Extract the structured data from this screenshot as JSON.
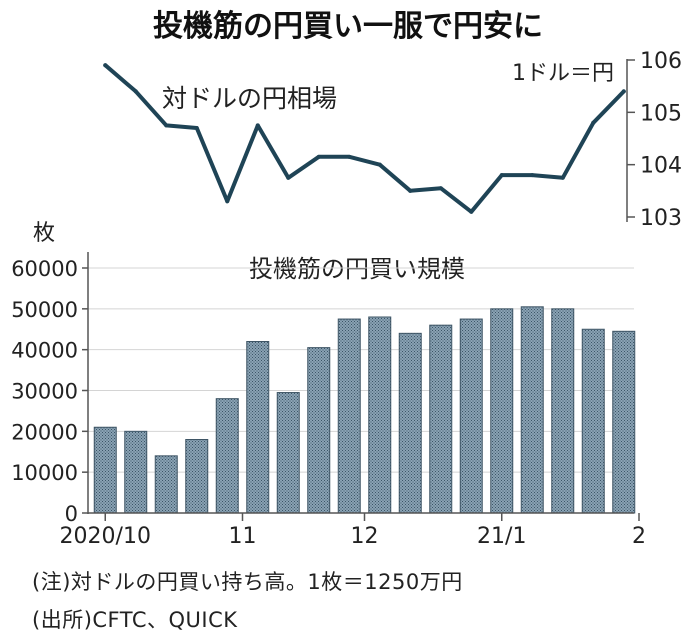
{
  "title": "投機筋の円買い一服で円安に",
  "chart_data": [
    {
      "type": "line",
      "title": "対ドルの円相場",
      "unit_label": "1ドル＝円",
      "ylim": [
        103,
        106
      ],
      "yticks": [
        "103",
        "104",
        "105",
        "106"
      ],
      "y_inverted": false,
      "values": [
        105.9,
        105.4,
        104.75,
        104.7,
        103.3,
        104.75,
        103.75,
        104.15,
        104.15,
        104.0,
        103.5,
        103.55,
        103.1,
        103.8,
        103.8,
        103.75,
        104.8,
        105.4
      ],
      "color": "#1f4456"
    },
    {
      "type": "bar",
      "title": "投機筋の円買い規模",
      "unit_label": "枚",
      "ylim": [
        0,
        60000
      ],
      "yticks": [
        "0",
        "10000",
        "20000",
        "30000",
        "40000",
        "50000",
        "60000"
      ],
      "values": [
        21000,
        20000,
        14000,
        18000,
        28000,
        42000,
        29500,
        40500,
        47500,
        48000,
        44000,
        46000,
        47500,
        50000,
        50500,
        50000,
        45000,
        44500
      ],
      "xticks": [
        {
          "index": 0,
          "label": "2020/10"
        },
        {
          "index": 4.5,
          "label": "11"
        },
        {
          "index": 8.5,
          "label": "12"
        },
        {
          "index": 13,
          "label": "21/1"
        },
        {
          "index": 17.5,
          "label": "2"
        }
      ],
      "color": "#7f98ab"
    }
  ],
  "notes": {
    "note": "(注)対ドルの円買い持ち高。1枚＝1250万円",
    "source": "(出所)CFTC、QUICK"
  }
}
